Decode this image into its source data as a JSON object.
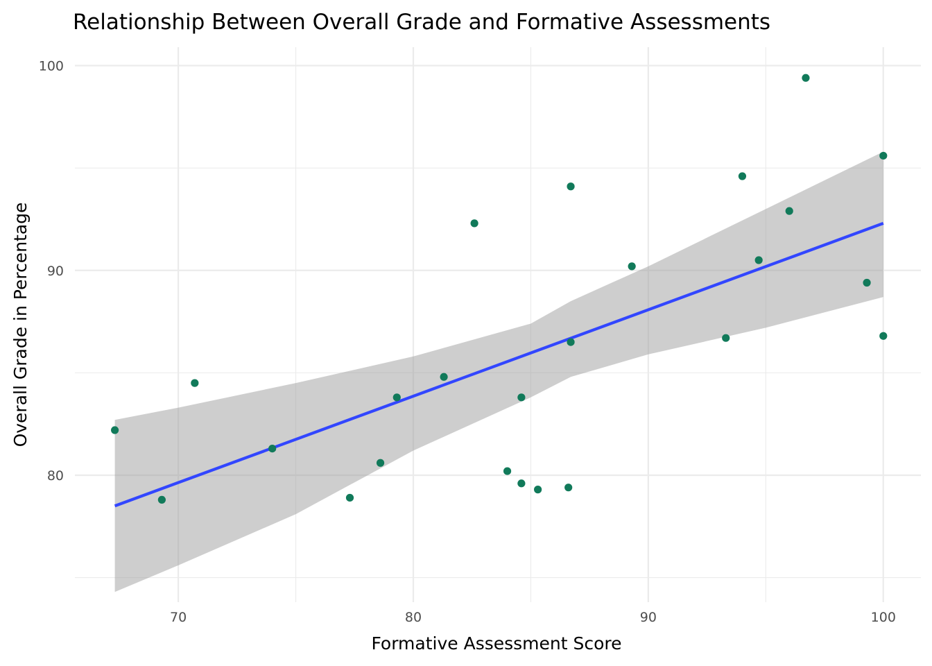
{
  "chart_data": {
    "type": "scatter",
    "title": "Relationship Between Overall Grade and Formative Assessments",
    "xlabel": "Formative Assessment Score",
    "ylabel": "Overall Grade in Percentage",
    "xlim": [
      65.6,
      101.6
    ],
    "ylim": [
      73.8,
      100.9
    ],
    "x_ticks": [
      70,
      80,
      90,
      100
    ],
    "y_ticks": [
      80,
      90,
      100
    ],
    "grid": true,
    "legend": "none",
    "point_color": "#117a5a",
    "line_color": "#3246ff",
    "band_color": "#999999",
    "points": [
      {
        "x": 67.3,
        "y": 82.2
      },
      {
        "x": 69.3,
        "y": 78.8
      },
      {
        "x": 70.7,
        "y": 84.5
      },
      {
        "x": 74.0,
        "y": 81.3
      },
      {
        "x": 77.3,
        "y": 78.9
      },
      {
        "x": 78.6,
        "y": 80.6
      },
      {
        "x": 79.3,
        "y": 83.8
      },
      {
        "x": 81.3,
        "y": 84.8
      },
      {
        "x": 82.6,
        "y": 92.3
      },
      {
        "x": 84.0,
        "y": 80.2
      },
      {
        "x": 84.6,
        "y": 79.6
      },
      {
        "x": 84.6,
        "y": 83.8
      },
      {
        "x": 85.3,
        "y": 79.3
      },
      {
        "x": 86.6,
        "y": 79.4
      },
      {
        "x": 86.7,
        "y": 86.5
      },
      {
        "x": 86.7,
        "y": 94.1
      },
      {
        "x": 89.3,
        "y": 90.2
      },
      {
        "x": 93.3,
        "y": 86.7
      },
      {
        "x": 94.0,
        "y": 94.6
      },
      {
        "x": 94.7,
        "y": 90.5
      },
      {
        "x": 96.0,
        "y": 92.9
      },
      {
        "x": 96.7,
        "y": 99.4
      },
      {
        "x": 99.3,
        "y": 89.4
      },
      {
        "x": 100.0,
        "y": 86.8
      },
      {
        "x": 100.0,
        "y": 95.6
      }
    ],
    "fit_line": {
      "x": [
        67.3,
        100.0
      ],
      "y": [
        78.5,
        92.3
      ]
    },
    "confidence_band": {
      "x": [
        67.3,
        70.0,
        75.0,
        80.0,
        85.0,
        86.7,
        90.0,
        95.0,
        100.0
      ],
      "upper": [
        82.7,
        83.3,
        84.5,
        85.8,
        87.4,
        88.5,
        90.2,
        93.0,
        95.8
      ],
      "lower": [
        74.3,
        75.6,
        78.1,
        81.2,
        83.8,
        84.8,
        85.9,
        87.2,
        88.7
      ]
    }
  }
}
